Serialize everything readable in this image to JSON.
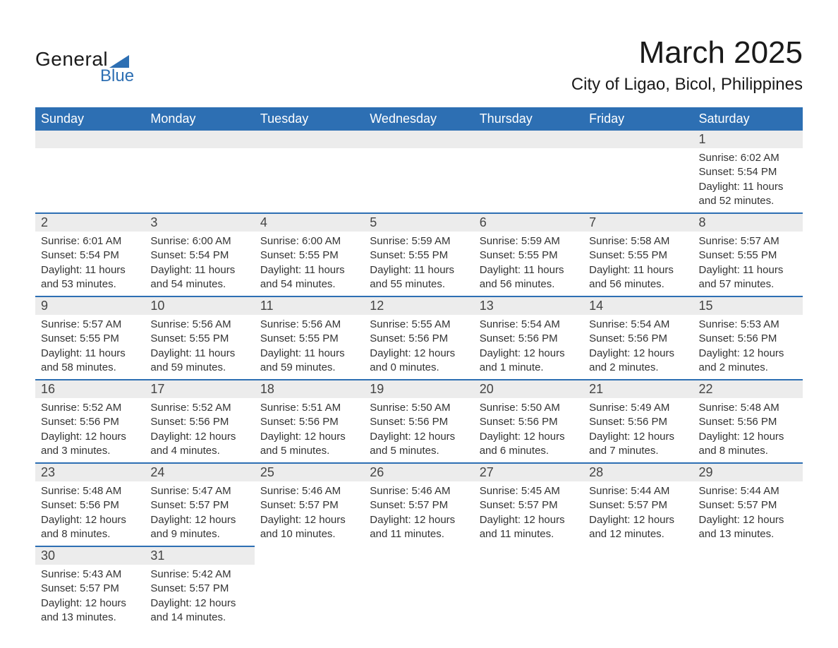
{
  "brand": {
    "line1": "General",
    "line2": "Blue"
  },
  "title": "March 2025",
  "location": "City of Ligao, Bicol, Philippines",
  "colors": {
    "header_bg": "#2d6fb3",
    "header_text": "#ffffff",
    "daynum_bg": "#ececec",
    "row_divider": "#2d6fb3",
    "body_text": "#333333",
    "page_bg": "#ffffff"
  },
  "typography": {
    "title_fontsize_pt": 33,
    "location_fontsize_pt": 18,
    "dayhead_fontsize_pt": 14,
    "daynum_fontsize_pt": 14,
    "body_fontsize_pt": 11
  },
  "weekday_labels": [
    "Sunday",
    "Monday",
    "Tuesday",
    "Wednesday",
    "Thursday",
    "Friday",
    "Saturday"
  ],
  "layout": {
    "columns": 7,
    "rows": 6,
    "first_weekday_index": 6
  },
  "weeks": [
    [
      null,
      null,
      null,
      null,
      null,
      null,
      {
        "n": "1",
        "sunrise": "Sunrise: 6:02 AM",
        "sunset": "Sunset: 5:54 PM",
        "daylight": "Daylight: 11 hours and 52 minutes."
      }
    ],
    [
      {
        "n": "2",
        "sunrise": "Sunrise: 6:01 AM",
        "sunset": "Sunset: 5:54 PM",
        "daylight": "Daylight: 11 hours and 53 minutes."
      },
      {
        "n": "3",
        "sunrise": "Sunrise: 6:00 AM",
        "sunset": "Sunset: 5:54 PM",
        "daylight": "Daylight: 11 hours and 54 minutes."
      },
      {
        "n": "4",
        "sunrise": "Sunrise: 6:00 AM",
        "sunset": "Sunset: 5:55 PM",
        "daylight": "Daylight: 11 hours and 54 minutes."
      },
      {
        "n": "5",
        "sunrise": "Sunrise: 5:59 AM",
        "sunset": "Sunset: 5:55 PM",
        "daylight": "Daylight: 11 hours and 55 minutes."
      },
      {
        "n": "6",
        "sunrise": "Sunrise: 5:59 AM",
        "sunset": "Sunset: 5:55 PM",
        "daylight": "Daylight: 11 hours and 56 minutes."
      },
      {
        "n": "7",
        "sunrise": "Sunrise: 5:58 AM",
        "sunset": "Sunset: 5:55 PM",
        "daylight": "Daylight: 11 hours and 56 minutes."
      },
      {
        "n": "8",
        "sunrise": "Sunrise: 5:57 AM",
        "sunset": "Sunset: 5:55 PM",
        "daylight": "Daylight: 11 hours and 57 minutes."
      }
    ],
    [
      {
        "n": "9",
        "sunrise": "Sunrise: 5:57 AM",
        "sunset": "Sunset: 5:55 PM",
        "daylight": "Daylight: 11 hours and 58 minutes."
      },
      {
        "n": "10",
        "sunrise": "Sunrise: 5:56 AM",
        "sunset": "Sunset: 5:55 PM",
        "daylight": "Daylight: 11 hours and 59 minutes."
      },
      {
        "n": "11",
        "sunrise": "Sunrise: 5:56 AM",
        "sunset": "Sunset: 5:55 PM",
        "daylight": "Daylight: 11 hours and 59 minutes."
      },
      {
        "n": "12",
        "sunrise": "Sunrise: 5:55 AM",
        "sunset": "Sunset: 5:56 PM",
        "daylight": "Daylight: 12 hours and 0 minutes."
      },
      {
        "n": "13",
        "sunrise": "Sunrise: 5:54 AM",
        "sunset": "Sunset: 5:56 PM",
        "daylight": "Daylight: 12 hours and 1 minute."
      },
      {
        "n": "14",
        "sunrise": "Sunrise: 5:54 AM",
        "sunset": "Sunset: 5:56 PM",
        "daylight": "Daylight: 12 hours and 2 minutes."
      },
      {
        "n": "15",
        "sunrise": "Sunrise: 5:53 AM",
        "sunset": "Sunset: 5:56 PM",
        "daylight": "Daylight: 12 hours and 2 minutes."
      }
    ],
    [
      {
        "n": "16",
        "sunrise": "Sunrise: 5:52 AM",
        "sunset": "Sunset: 5:56 PM",
        "daylight": "Daylight: 12 hours and 3 minutes."
      },
      {
        "n": "17",
        "sunrise": "Sunrise: 5:52 AM",
        "sunset": "Sunset: 5:56 PM",
        "daylight": "Daylight: 12 hours and 4 minutes."
      },
      {
        "n": "18",
        "sunrise": "Sunrise: 5:51 AM",
        "sunset": "Sunset: 5:56 PM",
        "daylight": "Daylight: 12 hours and 5 minutes."
      },
      {
        "n": "19",
        "sunrise": "Sunrise: 5:50 AM",
        "sunset": "Sunset: 5:56 PM",
        "daylight": "Daylight: 12 hours and 5 minutes."
      },
      {
        "n": "20",
        "sunrise": "Sunrise: 5:50 AM",
        "sunset": "Sunset: 5:56 PM",
        "daylight": "Daylight: 12 hours and 6 minutes."
      },
      {
        "n": "21",
        "sunrise": "Sunrise: 5:49 AM",
        "sunset": "Sunset: 5:56 PM",
        "daylight": "Daylight: 12 hours and 7 minutes."
      },
      {
        "n": "22",
        "sunrise": "Sunrise: 5:48 AM",
        "sunset": "Sunset: 5:56 PM",
        "daylight": "Daylight: 12 hours and 8 minutes."
      }
    ],
    [
      {
        "n": "23",
        "sunrise": "Sunrise: 5:48 AM",
        "sunset": "Sunset: 5:56 PM",
        "daylight": "Daylight: 12 hours and 8 minutes."
      },
      {
        "n": "24",
        "sunrise": "Sunrise: 5:47 AM",
        "sunset": "Sunset: 5:57 PM",
        "daylight": "Daylight: 12 hours and 9 minutes."
      },
      {
        "n": "25",
        "sunrise": "Sunrise: 5:46 AM",
        "sunset": "Sunset: 5:57 PM",
        "daylight": "Daylight: 12 hours and 10 minutes."
      },
      {
        "n": "26",
        "sunrise": "Sunrise: 5:46 AM",
        "sunset": "Sunset: 5:57 PM",
        "daylight": "Daylight: 12 hours and 11 minutes."
      },
      {
        "n": "27",
        "sunrise": "Sunrise: 5:45 AM",
        "sunset": "Sunset: 5:57 PM",
        "daylight": "Daylight: 12 hours and 11 minutes."
      },
      {
        "n": "28",
        "sunrise": "Sunrise: 5:44 AM",
        "sunset": "Sunset: 5:57 PM",
        "daylight": "Daylight: 12 hours and 12 minutes."
      },
      {
        "n": "29",
        "sunrise": "Sunrise: 5:44 AM",
        "sunset": "Sunset: 5:57 PM",
        "daylight": "Daylight: 12 hours and 13 minutes."
      }
    ],
    [
      {
        "n": "30",
        "sunrise": "Sunrise: 5:43 AM",
        "sunset": "Sunset: 5:57 PM",
        "daylight": "Daylight: 12 hours and 13 minutes."
      },
      {
        "n": "31",
        "sunrise": "Sunrise: 5:42 AM",
        "sunset": "Sunset: 5:57 PM",
        "daylight": "Daylight: 12 hours and 14 minutes."
      },
      null,
      null,
      null,
      null,
      null
    ]
  ]
}
